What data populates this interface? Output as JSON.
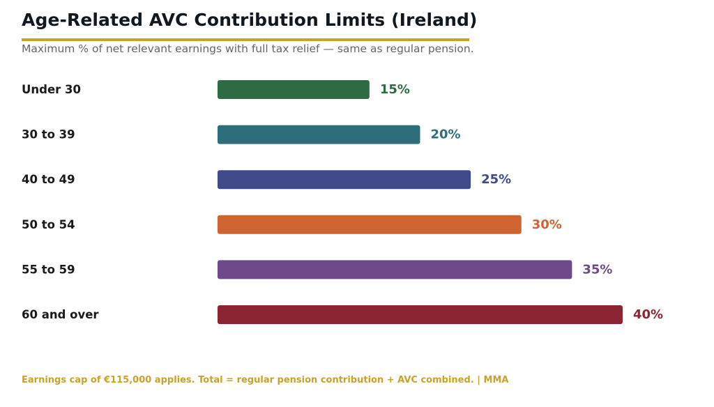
{
  "title": "Age-Related AVC Contribution Limits (Ireland)",
  "subtitle": "Maximum % of net relevant earnings with full tax relief — same as regular pension.",
  "footer": "Earnings cap of €115,000 applies. Total = regular pension contribution + AVC combined.  |  MMA",
  "colors": {
    "accent": "#c9a227",
    "category_text": "#1a1a1a"
  },
  "chart_data": {
    "type": "bar",
    "orientation": "horizontal",
    "categories": [
      "Under 30",
      "30 to 39",
      "40 to 49",
      "50 to 54",
      "55 to 59",
      "60 and over"
    ],
    "values": [
      15,
      20,
      25,
      30,
      35,
      40
    ],
    "value_labels": [
      "15%",
      "20%",
      "25%",
      "30%",
      "35%",
      "40%"
    ],
    "bar_colors": [
      "#2e6b45",
      "#2e6e7a",
      "#3f4a8a",
      "#d06430",
      "#6e4a8a",
      "#8b2433"
    ],
    "xlim": [
      0,
      40
    ],
    "grid": false
  }
}
